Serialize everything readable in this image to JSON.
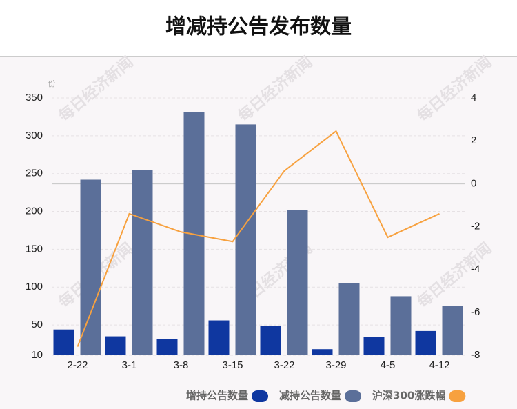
{
  "chart_data": {
    "type": "bar_line",
    "title": "增减持公告发布数量",
    "y_unit": "份",
    "watermark": "每日经济新闻",
    "categories": [
      "2-22",
      "3-1",
      "3-8",
      "3-15",
      "3-22",
      "3-29",
      "4-5",
      "4-12"
    ],
    "series": [
      {
        "name": "增持公告数量",
        "type": "bar",
        "color": "#0f37a0",
        "values": [
          44,
          35,
          31,
          56,
          49,
          18,
          34,
          42
        ]
      },
      {
        "name": "减持公告数量",
        "type": "bar",
        "color": "#5b6f99",
        "values": [
          242,
          255,
          331,
          315,
          202,
          105,
          88,
          75
        ]
      },
      {
        "name": "沪深300涨跌幅",
        "type": "line",
        "axis": "y2",
        "color": "#f7a13f",
        "values": [
          -7.6,
          -1.4,
          -2.25,
          -2.7,
          0.6,
          2.45,
          -2.5,
          -1.4
        ]
      }
    ],
    "ylim": [
      10,
      350
    ],
    "yticks": [
      10,
      50,
      100,
      150,
      200,
      250,
      300,
      350
    ],
    "y2lim": [
      -8,
      4
    ],
    "y2ticks": [
      -8,
      -6,
      -4,
      -2,
      0,
      2,
      4
    ],
    "grid": true
  }
}
